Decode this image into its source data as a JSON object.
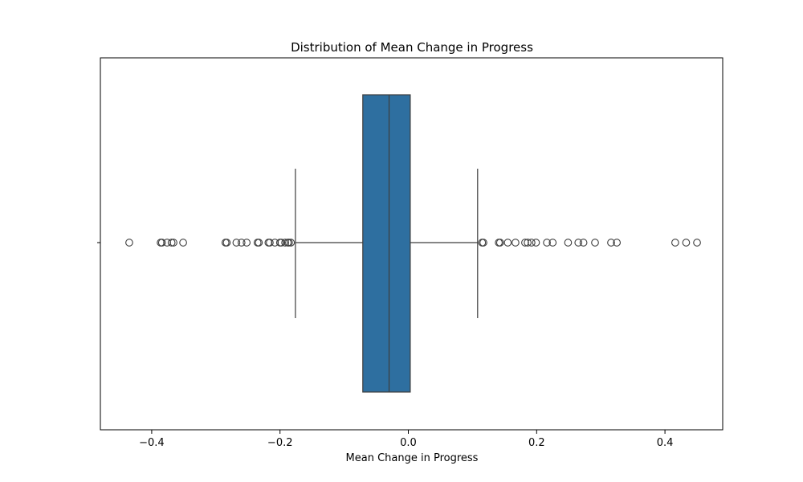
{
  "chart_data": {
    "type": "box",
    "title": "Distribution of Mean Change in Progress",
    "xlabel": "Mean Change in Progress",
    "ylabel": "",
    "xlim": [
      -0.48,
      0.49
    ],
    "xticks": [
      -0.4,
      -0.2,
      0.0,
      0.2,
      0.4
    ],
    "xtick_labels": [
      "−0.4",
      "−0.2",
      "0.0",
      "0.2",
      "0.4"
    ],
    "orientation": "horizontal",
    "box_color": "#2e6fa0",
    "edge_color": "#3d3d3d",
    "grid": false,
    "legend": "none",
    "stats": {
      "whisker_low": -0.176,
      "q1": -0.071,
      "median": -0.03,
      "q3": 0.003,
      "whisker_high": 0.108
    },
    "outliers": [
      -0.435,
      -0.386,
      -0.384,
      -0.376,
      -0.369,
      -0.366,
      -0.351,
      -0.285,
      -0.283,
      -0.268,
      -0.26,
      -0.252,
      -0.235,
      -0.233,
      -0.218,
      -0.216,
      -0.208,
      -0.2,
      -0.198,
      -0.192,
      -0.188,
      -0.186,
      -0.183,
      0.115,
      0.117,
      0.141,
      0.143,
      0.155,
      0.167,
      0.182,
      0.186,
      0.192,
      0.199,
      0.216,
      0.225,
      0.249,
      0.265,
      0.273,
      0.291,
      0.316,
      0.325,
      0.416,
      0.433,
      0.45
    ]
  }
}
